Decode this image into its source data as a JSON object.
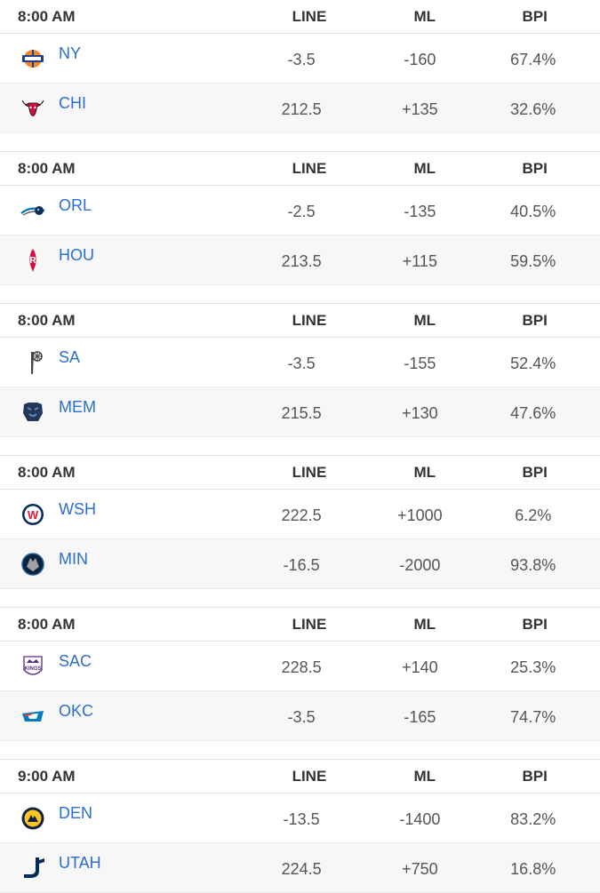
{
  "headers": {
    "line": "LINE",
    "ml": "ML",
    "bpi": "BPI"
  },
  "games": [
    {
      "time": "8:00 AM",
      "teams": [
        {
          "abbr": "NY",
          "line": "-3.5",
          "ml": "-160",
          "bpi": "67.4%",
          "logo": "knicks-logo",
          "color": "#f58426"
        },
        {
          "abbr": "CHI",
          "line": "212.5",
          "ml": "+135",
          "bpi": "32.6%",
          "logo": "bulls-logo",
          "color": "#ce1141"
        }
      ]
    },
    {
      "time": "8:00 AM",
      "teams": [
        {
          "abbr": "ORL",
          "line": "-2.5",
          "ml": "-135",
          "bpi": "40.5%",
          "logo": "magic-logo",
          "color": "#0077c0"
        },
        {
          "abbr": "HOU",
          "line": "213.5",
          "ml": "+115",
          "bpi": "59.5%",
          "logo": "rockets-logo",
          "color": "#ce1141"
        }
      ]
    },
    {
      "time": "8:00 AM",
      "teams": [
        {
          "abbr": "SA",
          "line": "-3.5",
          "ml": "-155",
          "bpi": "52.4%",
          "logo": "spurs-logo",
          "color": "#444444"
        },
        {
          "abbr": "MEM",
          "line": "215.5",
          "ml": "+130",
          "bpi": "47.6%",
          "logo": "grizzlies-logo",
          "color": "#5d76a9"
        }
      ]
    },
    {
      "time": "8:00 AM",
      "teams": [
        {
          "abbr": "WSH",
          "line": "222.5",
          "ml": "+1000",
          "bpi": "6.2%",
          "logo": "wizards-logo",
          "color": "#e31837"
        },
        {
          "abbr": "MIN",
          "line": "-16.5",
          "ml": "-2000",
          "bpi": "93.8%",
          "logo": "timberwolves-logo",
          "color": "#0c2340"
        }
      ]
    },
    {
      "time": "8:00 AM",
      "teams": [
        {
          "abbr": "SAC",
          "line": "228.5",
          "ml": "+140",
          "bpi": "25.3%",
          "logo": "kings-logo",
          "color": "#5a2d81"
        },
        {
          "abbr": "OKC",
          "line": "-3.5",
          "ml": "-165",
          "bpi": "74.7%",
          "logo": "thunder-logo",
          "color": "#007ac1"
        }
      ]
    },
    {
      "time": "9:00 AM",
      "teams": [
        {
          "abbr": "DEN",
          "line": "-13.5",
          "ml": "-1400",
          "bpi": "83.2%",
          "logo": "nuggets-logo",
          "color": "#0e2240"
        },
        {
          "abbr": "UTAH",
          "line": "224.5",
          "ml": "+750",
          "bpi": "16.8%",
          "logo": "jazz-logo",
          "color": "#002b5c"
        }
      ]
    }
  ]
}
